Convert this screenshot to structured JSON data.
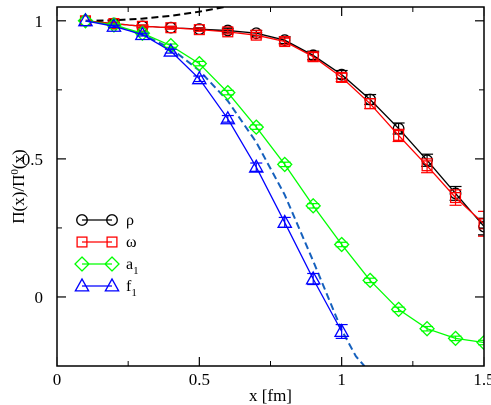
{
  "chart_data": {
    "type": "line",
    "title": "",
    "xlabel": "x [fm]",
    "ylabel": {
      "main": "Π(x)/Π",
      "sup": "0",
      "tail": "(x)"
    },
    "xlim": [
      0,
      1.5
    ],
    "ylim": [
      -0.25,
      1.05
    ],
    "xticks": [
      {
        "value": 0,
        "label": "0"
      },
      {
        "value": 0.5,
        "label": "0.5"
      },
      {
        "value": 1,
        "label": "1"
      },
      {
        "value": 1.5,
        "label": "1.5"
      }
    ],
    "yticks": [
      {
        "value": 0,
        "label": "0"
      },
      {
        "value": 0.5,
        "label": "0.5"
      },
      {
        "value": 1,
        "label": "1"
      }
    ],
    "grid": false,
    "legend_position": "lower-left",
    "series": [
      {
        "name": "ρ",
        "sub": "",
        "color": "#000000",
        "marker": "circle",
        "x": [
          0.1,
          0.2,
          0.3,
          0.4,
          0.5,
          0.6,
          0.7,
          0.8,
          0.9,
          1.0,
          1.1,
          1.2,
          1.3,
          1.4,
          1.5
        ],
        "y": [
          1.0,
          0.99,
          0.98,
          0.975,
          0.97,
          0.965,
          0.955,
          0.93,
          0.875,
          0.805,
          0.715,
          0.61,
          0.495,
          0.375,
          0.255
        ],
        "err": [
          0.0,
          0.005,
          0.005,
          0.005,
          0.005,
          0.008,
          0.01,
          0.012,
          0.015,
          0.015,
          0.018,
          0.02,
          0.022,
          0.025,
          0.03
        ]
      },
      {
        "name": "ω",
        "sub": "",
        "color": "#ff0000",
        "marker": "square",
        "x": [
          0.1,
          0.2,
          0.3,
          0.4,
          0.5,
          0.6,
          0.7,
          0.8,
          0.9,
          1.0,
          1.1,
          1.2,
          1.3,
          1.4,
          1.5
        ],
        "y": [
          1.0,
          0.99,
          0.98,
          0.975,
          0.968,
          0.96,
          0.948,
          0.925,
          0.87,
          0.795,
          0.7,
          0.585,
          0.475,
          0.36,
          0.265
        ],
        "err": [
          0.0,
          0.005,
          0.005,
          0.005,
          0.006,
          0.008,
          0.01,
          0.012,
          0.015,
          0.015,
          0.018,
          0.022,
          0.025,
          0.028,
          0.045
        ]
      },
      {
        "name": "a",
        "sub": "1",
        "color": "#00ff00",
        "marker": "diamond",
        "x": [
          0.1,
          0.2,
          0.3,
          0.4,
          0.5,
          0.6,
          0.7,
          0.8,
          0.9,
          1.0,
          1.1,
          1.2,
          1.3,
          1.4,
          1.5
        ],
        "y": [
          1.0,
          0.985,
          0.955,
          0.91,
          0.845,
          0.74,
          0.615,
          0.48,
          0.33,
          0.19,
          0.06,
          -0.045,
          -0.115,
          -0.15,
          -0.165
        ],
        "err": [
          0.0,
          0.004,
          0.005,
          0.006,
          0.008,
          0.008,
          0.008,
          0.008,
          0.008,
          0.008,
          0.008,
          0.008,
          0.008,
          0.008,
          0.008
        ]
      },
      {
        "name": "f",
        "sub": "1",
        "color": "#0000ff",
        "marker": "triangle",
        "x": [
          0.1,
          0.2,
          0.3,
          0.4,
          0.5,
          0.6,
          0.7,
          0.8,
          0.9,
          1.0
        ],
        "y": [
          1.0,
          0.98,
          0.95,
          0.89,
          0.79,
          0.645,
          0.47,
          0.27,
          0.065,
          -0.125
        ],
        "err": [
          0.0,
          0.004,
          0.005,
          0.007,
          0.01,
          0.012,
          0.015,
          0.018,
          0.02,
          0.025
        ]
      }
    ],
    "dashed_curves": [
      {
        "color": "#000000",
        "x": [
          0.1,
          0.2,
          0.3,
          0.4,
          0.5,
          0.6,
          0.65,
          0.69
        ],
        "y": [
          1.0,
          1.002,
          1.008,
          1.018,
          1.033,
          1.052,
          1.064,
          1.075
        ]
      },
      {
        "color": "#1560bd",
        "x": [
          0.1,
          0.2,
          0.3,
          0.4,
          0.5,
          0.6,
          0.7,
          0.8,
          0.9,
          1.0,
          1.05,
          1.08
        ],
        "y": [
          1.0,
          0.985,
          0.95,
          0.9,
          0.82,
          0.71,
          0.56,
          0.37,
          0.13,
          -0.12,
          -0.215,
          -0.25
        ]
      }
    ]
  }
}
